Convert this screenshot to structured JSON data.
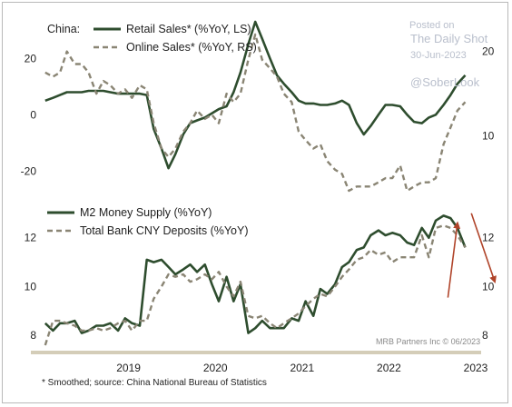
{
  "chart_data": [
    {
      "type": "line",
      "region_label": "China:",
      "dual_axis": true,
      "left_axis": {
        "ylim": [
          -27,
          33
        ],
        "ticks": [
          -20,
          0,
          20
        ]
      },
      "right_axis": {
        "ylim": [
          3.5,
          23.5
        ],
        "ticks": [
          10,
          20
        ]
      },
      "x_range": [
        2018.5,
        2023.5
      ],
      "series": [
        {
          "name": "Retail Sales* (%YoY, LS)",
          "axis": "left",
          "style": "solid",
          "color": "#2e4d2e",
          "x": [
            2018.54,
            2018.63,
            2018.71,
            2018.79,
            2018.88,
            2018.96,
            2019.04,
            2019.13,
            2019.21,
            2019.29,
            2019.38,
            2019.46,
            2019.54,
            2019.63,
            2019.71,
            2019.79,
            2019.88,
            2019.96,
            2020.04,
            2020.13,
            2020.21,
            2020.29,
            2020.38,
            2020.46,
            2020.54,
            2020.63,
            2020.71,
            2020.79,
            2020.88,
            2020.96,
            2021.04,
            2021.13,
            2021.21,
            2021.29,
            2021.38,
            2021.46,
            2021.54,
            2021.63,
            2021.71,
            2021.79,
            2021.88,
            2021.96,
            2022.04,
            2022.13,
            2022.21,
            2022.29,
            2022.38,
            2022.46,
            2022.54,
            2022.63,
            2022.71,
            2022.79,
            2022.88,
            2022.96,
            2023.04,
            2023.13,
            2023.21,
            2023.29,
            2023.38
          ],
          "y": [
            5,
            6,
            7,
            8,
            8,
            8,
            8.5,
            8.5,
            8.5,
            8,
            7.5,
            7.5,
            7.5,
            7.5,
            7,
            -5,
            -12,
            -19,
            -14,
            -7,
            -3,
            -2,
            -1,
            0.5,
            2,
            3,
            8,
            15,
            25,
            33,
            27,
            20,
            14,
            11,
            8,
            5,
            4,
            4,
            3.5,
            3.5,
            4,
            5,
            3.5,
            -3,
            -7,
            -4,
            0,
            3.5,
            3.5,
            3,
            0,
            -2.5,
            -3,
            -1,
            0,
            3.5,
            7,
            11,
            14
          ]
        },
        {
          "name": "Online Sales* (%YoY, RS)",
          "axis": "right",
          "style": "dashed",
          "color": "#8a8574",
          "x": [
            2018.54,
            2018.63,
            2018.71,
            2018.79,
            2018.88,
            2018.96,
            2019.04,
            2019.13,
            2019.21,
            2019.29,
            2019.38,
            2019.46,
            2019.54,
            2019.63,
            2019.71,
            2019.79,
            2019.88,
            2019.96,
            2020.04,
            2020.13,
            2020.21,
            2020.29,
            2020.38,
            2020.46,
            2020.54,
            2020.63,
            2020.71,
            2020.79,
            2020.88,
            2020.96,
            2021.04,
            2021.13,
            2021.21,
            2021.29,
            2021.38,
            2021.46,
            2021.54,
            2021.63,
            2021.71,
            2021.79,
            2021.88,
            2021.96,
            2022.04,
            2022.13,
            2022.21,
            2022.29,
            2022.38,
            2022.46,
            2022.54,
            2022.63,
            2022.71,
            2022.79,
            2022.88,
            2022.96,
            2023.04,
            2023.13,
            2023.21,
            2023.29,
            2023.38
          ],
          "y": [
            17.5,
            17,
            17.5,
            20,
            18.5,
            18.5,
            17.5,
            15,
            16.5,
            16,
            15,
            15.5,
            14.5,
            16,
            15.5,
            11.5,
            8.5,
            7.5,
            8.5,
            10.5,
            11.5,
            13,
            12,
            12.5,
            11.5,
            15,
            14,
            15,
            19,
            22,
            19,
            18,
            17,
            15,
            14,
            10.5,
            9.5,
            8.5,
            9,
            7,
            6,
            5.5,
            3.5,
            4,
            4,
            4,
            4.5,
            5,
            5,
            6.5,
            3.5,
            4,
            4.5,
            4.5,
            5,
            9,
            11,
            13,
            14
          ]
        }
      ]
    },
    {
      "type": "line",
      "dual_axis": true,
      "left_axis": {
        "ylim": [
          7.6,
          13.4
        ],
        "ticks": [
          8,
          10,
          12
        ]
      },
      "right_axis": {
        "ylim": [
          7.6,
          13.4
        ],
        "ticks": [
          8,
          10,
          12
        ]
      },
      "x_range": [
        2018.5,
        2023.5
      ],
      "xticks": [
        2019,
        2020,
        2021,
        2022,
        2023
      ],
      "series": [
        {
          "name": "M2 Money Supply (%YoY)",
          "axis": "left",
          "style": "solid",
          "color": "#2e4d2e",
          "x": [
            2018.54,
            2018.63,
            2018.71,
            2018.79,
            2018.88,
            2018.96,
            2019.04,
            2019.13,
            2019.21,
            2019.29,
            2019.38,
            2019.46,
            2019.54,
            2019.63,
            2019.71,
            2019.79,
            2019.88,
            2019.96,
            2020.04,
            2020.13,
            2020.21,
            2020.29,
            2020.38,
            2020.46,
            2020.54,
            2020.63,
            2020.71,
            2020.79,
            2020.88,
            2020.96,
            2021.04,
            2021.13,
            2021.21,
            2021.29,
            2021.38,
            2021.46,
            2021.54,
            2021.63,
            2021.71,
            2021.79,
            2021.88,
            2021.96,
            2022.04,
            2022.13,
            2022.21,
            2022.29,
            2022.38,
            2022.46,
            2022.54,
            2022.63,
            2022.71,
            2022.79,
            2022.88,
            2022.96,
            2023.04,
            2023.13,
            2023.21,
            2023.29,
            2023.38
          ],
          "y": [
            8.5,
            8.2,
            8.5,
            8.5,
            8.6,
            8.1,
            8.2,
            8.4,
            8.4,
            8.5,
            8.2,
            8.7,
            8.5,
            8.4,
            11.1,
            11.0,
            11.1,
            10.8,
            10.5,
            10.7,
            10.9,
            10.6,
            10.9,
            10.1,
            9.4,
            10.4,
            9.4,
            10.1,
            8.1,
            8.3,
            8.6,
            8.3,
            8.3,
            8.3,
            8.7,
            8.6,
            9.4,
            8.8,
            9.9,
            9.7,
            10.1,
            10.8,
            11.0,
            11.5,
            11.6,
            12.1,
            12.3,
            12.1,
            12.2,
            12.1,
            11.8,
            11.7,
            12.4,
            12.0,
            12.7,
            12.9,
            12.8,
            12.4,
            11.6
          ]
        },
        {
          "name": "Total Bank CNY Deposits (%YoY)",
          "axis": "left",
          "style": "dashed",
          "color": "#8a8574",
          "x": [
            2018.54,
            2018.63,
            2018.71,
            2018.79,
            2018.88,
            2018.96,
            2019.04,
            2019.13,
            2019.21,
            2019.29,
            2019.38,
            2019.46,
            2019.54,
            2019.63,
            2019.71,
            2019.79,
            2019.88,
            2019.96,
            2020.04,
            2020.13,
            2020.21,
            2020.29,
            2020.38,
            2020.46,
            2020.54,
            2020.63,
            2020.71,
            2020.79,
            2020.88,
            2020.96,
            2021.04,
            2021.13,
            2021.21,
            2021.29,
            2021.38,
            2021.46,
            2021.54,
            2021.63,
            2021.71,
            2021.79,
            2021.88,
            2021.96,
            2022.04,
            2022.13,
            2022.21,
            2022.29,
            2022.38,
            2022.46,
            2022.54,
            2022.63,
            2022.71,
            2022.79,
            2022.88,
            2022.96,
            2023.04,
            2023.13,
            2023.21,
            2023.29,
            2023.38
          ],
          "y": [
            7.6,
            8.6,
            8.6,
            8.5,
            8.4,
            8.2,
            8.2,
            8.3,
            8.2,
            8.3,
            8.5,
            8.6,
            8.2,
            8.6,
            8.6,
            9.5,
            10.0,
            10.5,
            10.4,
            10.5,
            10.2,
            10.3,
            10.5,
            10.3,
            10.6,
            10.0,
            9.6,
            10.2,
            8.8,
            8.7,
            8.8,
            8.5,
            8.3,
            8.5,
            8.7,
            8.9,
            9.2,
            9.5,
            9.7,
            9.6,
            10.0,
            10.4,
            10.7,
            11.1,
            11.2,
            11.5,
            11.3,
            11.4,
            11.0,
            11.2,
            11.2,
            11.2,
            12.1,
            11.2,
            12.4,
            12.5,
            12.4,
            12.1,
            11.6
          ]
        }
      ],
      "arrows": [
        {
          "axis": "right",
          "from": [
            2023.18,
            9.55
          ],
          "to": [
            2023.29,
            12.6
          ],
          "color": "#b0442a"
        },
        {
          "axis": "left",
          "from": [
            2023.45,
            13.0
          ],
          "to": [
            2023.72,
            10.2
          ],
          "color": "#b0442a"
        }
      ]
    }
  ],
  "watermark": {
    "line1": "Posted on",
    "line2": "The Daily Shot",
    "line3": "30-Jun-2023",
    "handle": "@SoberLook"
  },
  "credit": "MRB Partners Inc © 06/2023",
  "footnote": "* Smoothed; source: China National Bureau of Statistics"
}
